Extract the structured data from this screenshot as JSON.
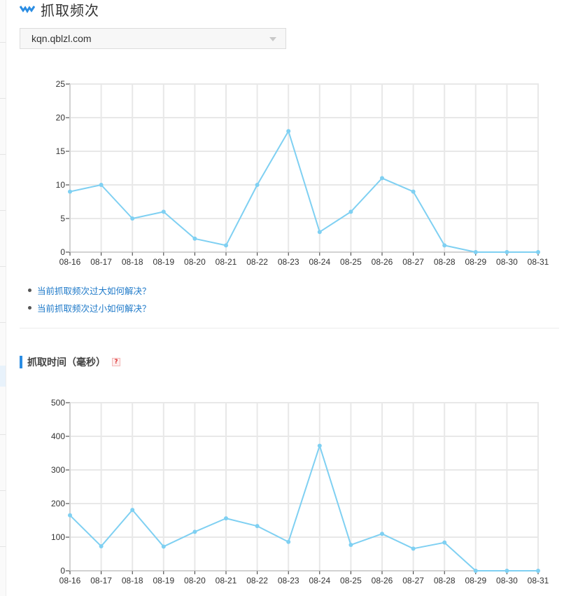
{
  "header": {
    "title": "抓取频次",
    "icon": "chevron-down-icon"
  },
  "site_select": {
    "value": "kqn.qblzl.com"
  },
  "links": [
    {
      "label": "当前抓取频次过大如何解决？"
    },
    {
      "label": "当前抓取频次过小如何解决？"
    }
  ],
  "section2": {
    "title": "抓取时间（毫秒）",
    "help_label": "?"
  },
  "colors": {
    "line": "#7fd0f2",
    "accent": "#2b8de3",
    "link": "#1f7ac9",
    "grid": "#e8e8e8"
  },
  "chart_data": [
    {
      "type": "line",
      "title": "",
      "xlabel": "",
      "ylabel": "",
      "x": [
        "08-16",
        "08-17",
        "08-18",
        "08-19",
        "08-20",
        "08-21",
        "08-22",
        "08-23",
        "08-24",
        "08-25",
        "08-26",
        "08-27",
        "08-28",
        "08-29",
        "08-30",
        "08-31"
      ],
      "series": [
        {
          "values": [
            9,
            10,
            5,
            6,
            2,
            1,
            10,
            18,
            3,
            6,
            11,
            9,
            1,
            0,
            0,
            0
          ]
        }
      ],
      "ylim": [
        0,
        25
      ],
      "yticks": [
        0,
        5,
        10,
        15,
        20,
        25
      ],
      "grid": true,
      "legend": "none"
    },
    {
      "type": "line",
      "title": "",
      "xlabel": "",
      "ylabel": "",
      "x": [
        "08-16",
        "08-17",
        "08-18",
        "08-19",
        "08-20",
        "08-21",
        "08-22",
        "08-23",
        "08-24",
        "08-25",
        "08-26",
        "08-27",
        "08-28",
        "08-29",
        "08-30",
        "08-31"
      ],
      "series": [
        {
          "values": [
            165,
            73,
            181,
            72,
            116,
            156,
            133,
            86,
            372,
            77,
            110,
            66,
            84,
            0,
            0,
            0
          ]
        }
      ],
      "ylim": [
        0,
        500
      ],
      "yticks": [
        0,
        100,
        200,
        300,
        400,
        500
      ],
      "grid": true,
      "legend": "none"
    }
  ]
}
